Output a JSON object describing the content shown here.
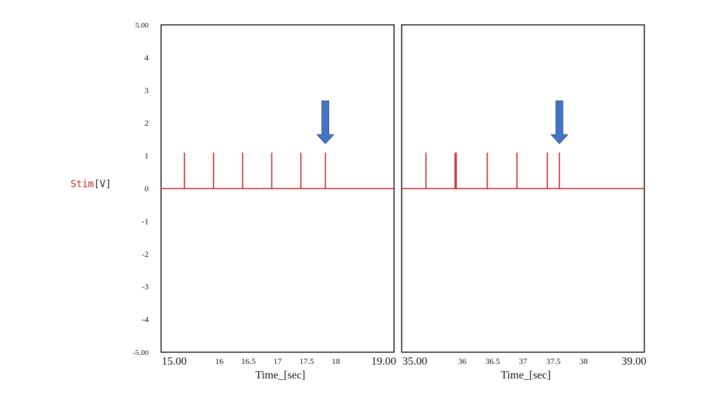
{
  "colors": {
    "signal": "#cc2222",
    "frame": "#111111",
    "arrow": "#4472c4",
    "arrow_edge": "#2f528f"
  },
  "y_axis": {
    "label_name": "Stim",
    "label_unit": "[V]",
    "ylim": [
      -5,
      5
    ],
    "ticks": [
      5,
      4,
      3,
      2,
      1,
      0,
      -1,
      -2,
      -3,
      -4,
      -5
    ],
    "tick_labels": [
      "5.00",
      "4",
      "3",
      "2",
      "1",
      "0",
      "-1",
      "-2",
      "-3",
      "-4",
      "-5.00"
    ]
  },
  "chart_data": [
    {
      "type": "line",
      "xlabel": "Time_[sec]",
      "xlim": [
        15,
        19
      ],
      "ylim": [
        -5,
        5
      ],
      "x_ticks": [
        15,
        16,
        16.5,
        17,
        17.5,
        18,
        19
      ],
      "x_tick_labels": [
        "15.00",
        "16",
        "16.5",
        "17",
        "17.5",
        "18",
        "19.00"
      ],
      "series": [
        {
          "baseline": 0,
          "pulse_amplitude": 1.1,
          "pulse_times": [
            15.4,
            15.9,
            16.4,
            16.9,
            17.4,
            17.82
          ]
        }
      ],
      "annotations": [
        {
          "type": "arrow",
          "x": 17.82,
          "points": "down"
        }
      ]
    },
    {
      "type": "line",
      "xlabel": "Time_[sec]",
      "xlim": [
        35,
        39
      ],
      "ylim": [
        -5,
        5
      ],
      "x_ticks": [
        36,
        36.5,
        37,
        37.5,
        38
      ],
      "x_tick_labels": [
        "35.00",
        "36",
        "36.5",
        "37",
        "37.5",
        "38",
        "39.00"
      ],
      "x_tick_positions": [
        35,
        36,
        36.5,
        37,
        37.5,
        38,
        39
      ],
      "series": [
        {
          "baseline": 0,
          "pulse_amplitude": 1.1,
          "pulse_times": [
            35.4,
            35.88,
            35.9,
            36.41,
            36.9,
            37.4,
            37.6
          ]
        }
      ],
      "annotations": [
        {
          "type": "arrow",
          "x": 37.6,
          "points": "down"
        }
      ]
    }
  ]
}
